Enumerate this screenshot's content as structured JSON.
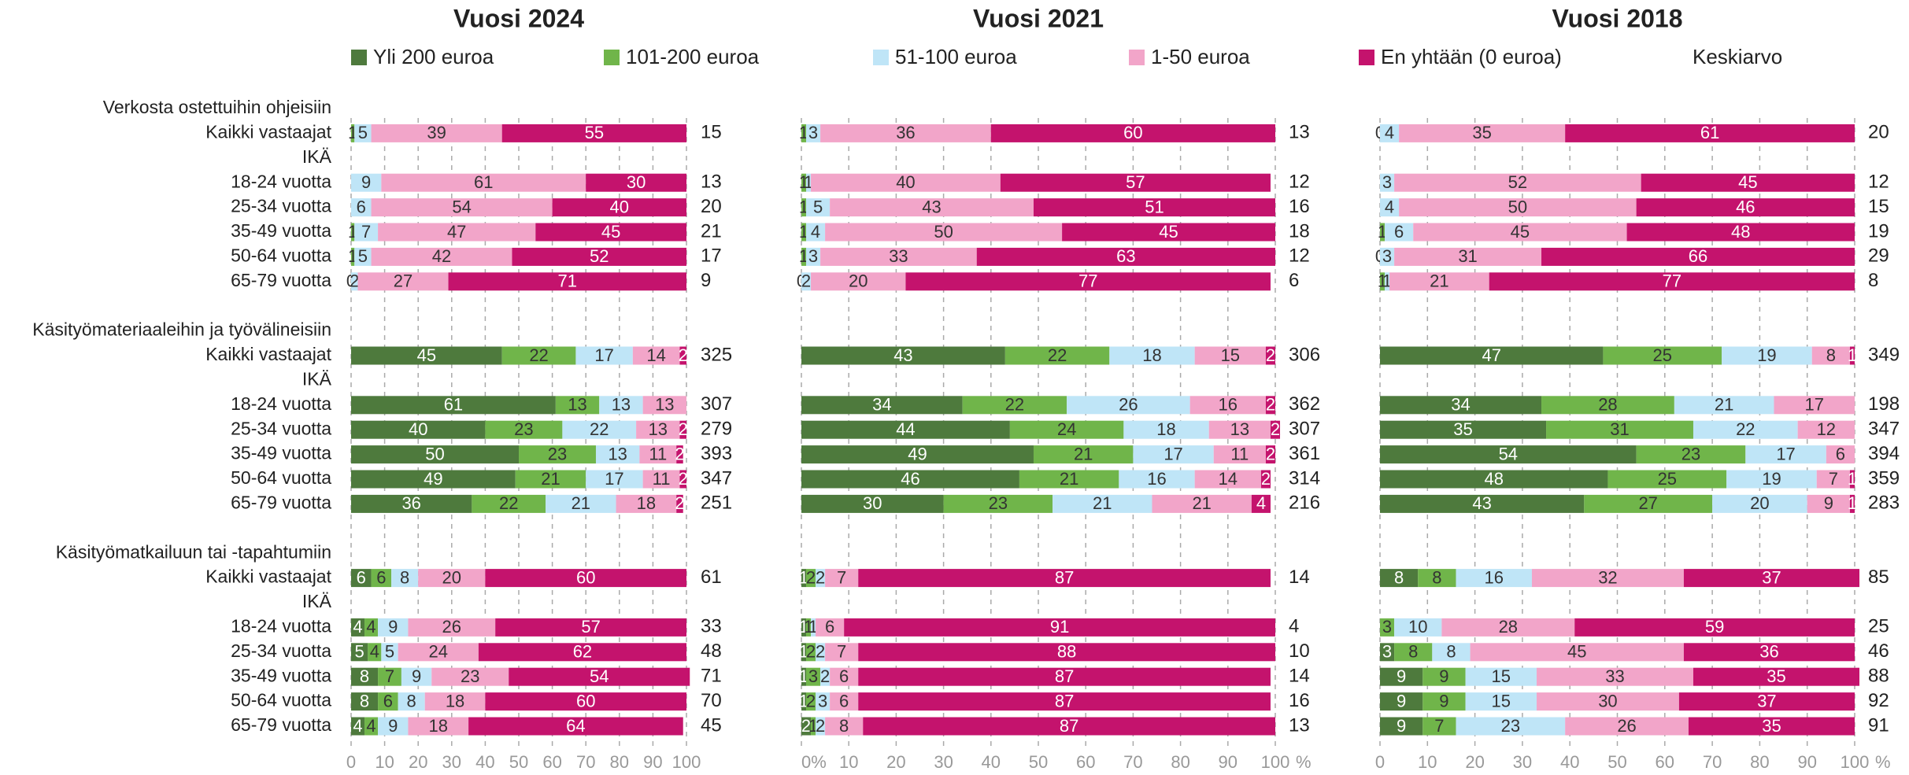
{
  "chart_data": [
    {
      "type": "stacked_barh",
      "title": "Vuosi 2024",
      "categories": [
        "Verkosta ostettuihin ohjeisiin",
        "Kaikki vastaajat",
        "IKÄ",
        "18-24 vuotta",
        "25-34 vuotta",
        "35-49 vuotta",
        "50-64 vuotta",
        "65-79 vuotta",
        "Käsityömateriaaleihin ja työvälineisiin",
        "Kaikki vastaajat",
        "IKÄ",
        "18-24 vuotta",
        "25-34 vuotta",
        "35-49 vuotta",
        "50-64 vuotta",
        "65-79 vuotta",
        "Käsityömatkailuun tai -tapahtumiin",
        "Kaikki vastaajat",
        "IKÄ",
        "18-24 vuotta",
        "25-34 vuotta",
        "35-49 vuotta",
        "50-64 vuotta",
        "65-79 vuotta"
      ],
      "series": [
        {
          "name": "Yli 200 euroa",
          "color": "#4e7a3d",
          "values": [
            null,
            null,
            null,
            null,
            null,
            null,
            null,
            null,
            null,
            45,
            null,
            61,
            40,
            50,
            49,
            36,
            null,
            6,
            null,
            4,
            5,
            8,
            8,
            4
          ]
        },
        {
          "name": "101-200 euroa",
          "color": "#70b54a",
          "values": [
            null,
            1,
            null,
            null,
            null,
            1,
            1,
            0,
            null,
            22,
            null,
            13,
            23,
            23,
            21,
            22,
            null,
            6,
            null,
            4,
            4,
            7,
            6,
            4
          ]
        },
        {
          "name": "51-100 euroa",
          "color": "#bfe5f7",
          "values": [
            null,
            5,
            null,
            9,
            6,
            7,
            5,
            2,
            null,
            17,
            null,
            13,
            22,
            13,
            17,
            21,
            null,
            8,
            null,
            9,
            5,
            9,
            8,
            9
          ]
        },
        {
          "name": "1-50 euroa",
          "color": "#f2a5c9",
          "values": [
            null,
            39,
            null,
            61,
            54,
            47,
            42,
            27,
            null,
            14,
            null,
            13,
            13,
            11,
            11,
            18,
            null,
            20,
            null,
            26,
            24,
            23,
            18,
            18
          ]
        },
        {
          "name": "En yhtään (0 euroa)",
          "color": "#c4136d",
          "values": [
            null,
            55,
            null,
            30,
            40,
            45,
            52,
            71,
            null,
            2,
            null,
            null,
            2,
            2,
            2,
            2,
            null,
            60,
            null,
            57,
            62,
            54,
            60,
            64
          ]
        }
      ],
      "mean_label": "Keskiarvo",
      "means": [
        null,
        15,
        null,
        13,
        20,
        21,
        17,
        9,
        null,
        325,
        null,
        307,
        279,
        393,
        347,
        251,
        null,
        61,
        null,
        33,
        48,
        71,
        70,
        45
      ],
      "xlim": [
        0,
        100
      ],
      "xticks": [
        0,
        10,
        20,
        30,
        40,
        50,
        60,
        70,
        80,
        90,
        100
      ],
      "grid": true
    },
    {
      "type": "stacked_barh",
      "title": "Vuosi 2021",
      "series": [
        {
          "values": [
            null,
            null,
            null,
            null,
            null,
            null,
            null,
            null,
            null,
            43,
            null,
            34,
            44,
            49,
            46,
            30,
            null,
            1,
            null,
            1,
            1,
            1,
            1,
            2
          ]
        },
        {
          "values": [
            null,
            1,
            null,
            1,
            1,
            1,
            1,
            0,
            null,
            22,
            null,
            22,
            24,
            21,
            21,
            23,
            null,
            2,
            null,
            1,
            2,
            3,
            2,
            1
          ]
        },
        {
          "values": [
            null,
            3,
            null,
            1,
            5,
            4,
            3,
            2,
            null,
            18,
            null,
            26,
            18,
            17,
            16,
            21,
            null,
            2,
            null,
            1,
            2,
            2,
            3,
            2
          ]
        },
        {
          "values": [
            null,
            36,
            null,
            40,
            43,
            50,
            33,
            20,
            null,
            15,
            null,
            16,
            13,
            11,
            14,
            21,
            null,
            7,
            null,
            6,
            7,
            6,
            6,
            8
          ]
        },
        {
          "values": [
            null,
            60,
            null,
            57,
            51,
            45,
            63,
            77,
            null,
            2,
            null,
            2,
            2,
            2,
            2,
            4,
            null,
            87,
            null,
            91,
            88,
            87,
            87,
            87
          ]
        }
      ],
      "means": [
        null,
        13,
        null,
        12,
        16,
        18,
        12,
        6,
        null,
        306,
        null,
        362,
        307,
        361,
        314,
        216,
        null,
        14,
        null,
        4,
        10,
        14,
        16,
        13
      ],
      "xlim": [
        0,
        100
      ],
      "xticks": [
        {
          "value": 0,
          "label": "0%"
        },
        10,
        20,
        30,
        40,
        50,
        60,
        70,
        80,
        90,
        100
      ],
      "x_unit": "%",
      "grid": true
    },
    {
      "type": "stacked_barh",
      "title": "Vuosi 2018",
      "series": [
        {
          "values": [
            null,
            null,
            null,
            null,
            null,
            null,
            null,
            null,
            null,
            47,
            null,
            34,
            35,
            54,
            48,
            43,
            null,
            8,
            null,
            null,
            3,
            9,
            9,
            9
          ]
        },
        {
          "values": [
            null,
            0,
            null,
            null,
            null,
            1,
            0,
            1,
            null,
            25,
            null,
            28,
            31,
            23,
            25,
            27,
            null,
            8,
            null,
            3,
            8,
            9,
            9,
            7
          ]
        },
        {
          "values": [
            null,
            4,
            null,
            3,
            4,
            6,
            3,
            1,
            null,
            19,
            null,
            21,
            22,
            17,
            19,
            20,
            null,
            16,
            null,
            10,
            8,
            15,
            15,
            23
          ]
        },
        {
          "values": [
            null,
            35,
            null,
            52,
            50,
            45,
            31,
            21,
            null,
            8,
            null,
            17,
            12,
            6,
            7,
            9,
            null,
            32,
            null,
            28,
            45,
            33,
            30,
            26
          ]
        },
        {
          "values": [
            null,
            61,
            null,
            45,
            46,
            48,
            66,
            77,
            null,
            1,
            null,
            null,
            null,
            null,
            1,
            1,
            null,
            37,
            null,
            59,
            36,
            35,
            37,
            35
          ]
        }
      ],
      "means": [
        null,
        20,
        null,
        12,
        15,
        19,
        29,
        8,
        null,
        349,
        null,
        198,
        347,
        394,
        359,
        283,
        null,
        85,
        null,
        25,
        46,
        88,
        92,
        91
      ],
      "xlim": [
        0,
        100
      ],
      "xticks": [
        0,
        10,
        20,
        30,
        40,
        50,
        60,
        70,
        80,
        90,
        100
      ],
      "x_unit": "%",
      "grid": true
    }
  ]
}
